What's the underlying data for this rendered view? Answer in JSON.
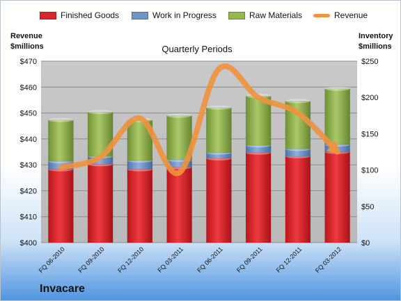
{
  "legend": [
    {
      "name": "Finished Goods",
      "color": "#d9262c"
    },
    {
      "name": "Work in Progress",
      "color": "#6f94c8"
    },
    {
      "name": "Raw Materials",
      "color": "#94b74e"
    },
    {
      "name": "Revenue",
      "color": "#f0923e"
    }
  ],
  "left_axis_title": [
    "Revenue",
    "$millions"
  ],
  "right_axis_title": [
    "Inventory",
    "$millions"
  ],
  "company": "Invacare",
  "chart_data": {
    "type": "bar",
    "title": "Quarterly Periods",
    "categories": [
      "FQ 06-2010",
      "FQ 09-2010",
      "FQ 12-2010",
      "FQ 03-2011",
      "FQ 06-2011",
      "FQ 09-2011",
      "FQ 12-2011",
      "FQ 03-2012"
    ],
    "stacked": true,
    "series": [
      {
        "name": "Finished Goods",
        "axis": "right",
        "values": [
          101,
          108,
          101,
          104,
          116,
          124,
          119,
          125
        ]
      },
      {
        "name": "Work in Progress",
        "axis": "right",
        "values": [
          11,
          11,
          12,
          10,
          8,
          10,
          10,
          10
        ]
      },
      {
        "name": "Raw Materials",
        "axis": "right",
        "values": [
          57,
          61,
          56,
          61,
          62,
          68,
          66,
          77
        ]
      },
      {
        "name": "Revenue",
        "axis": "left",
        "type": "line",
        "values": [
          429,
          433,
          448,
          427,
          467,
          456,
          450,
          435
        ]
      }
    ],
    "left_axis": {
      "ylim": [
        400,
        470
      ],
      "ticks": [
        "$400",
        "$410",
        "$420",
        "$430",
        "$440",
        "$450",
        "$460",
        "$470"
      ]
    },
    "right_axis": {
      "ylim": [
        0,
        250
      ],
      "ticks": [
        "$0",
        "$50",
        "$100",
        "$150",
        "$200",
        "$250"
      ]
    },
    "grid": true,
    "legend_position": "top"
  }
}
